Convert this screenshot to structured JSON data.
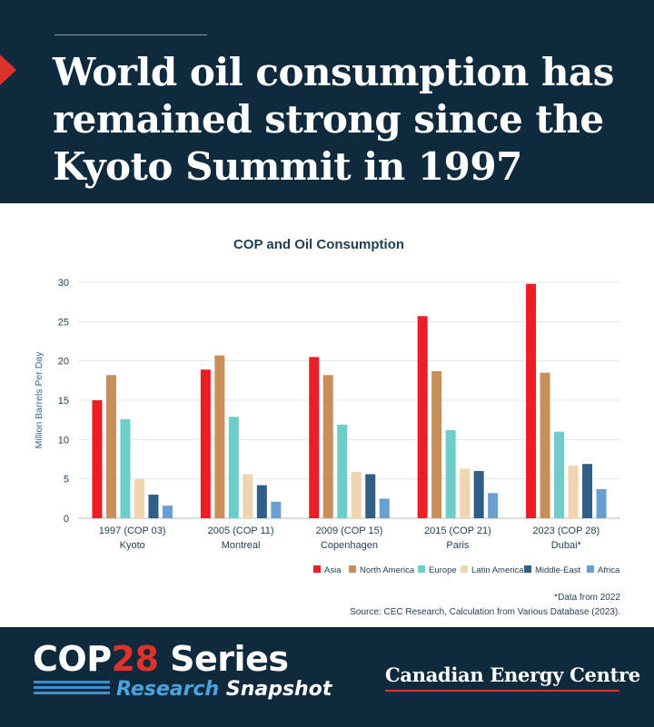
{
  "header": {
    "title": "World oil consumption has remained strong since the Kyoto Summit in 1997"
  },
  "colors": {
    "navy": "#0f2a3d",
    "accent_red": "#d9312b"
  },
  "chart_data": {
    "type": "bar",
    "title": "COP and Oil Consumption",
    "ylabel": "Million Barrels Per Day",
    "xlabel": "",
    "ylim": [
      0,
      30
    ],
    "yticks": [
      0,
      5,
      10,
      15,
      20,
      25,
      30
    ],
    "grid": true,
    "legend_position": "bottom-right",
    "categories": [
      {
        "line1": "1997 (COP 03)",
        "line2": "Kyoto"
      },
      {
        "line1": "2005 (COP 11)",
        "line2": "Montreal"
      },
      {
        "line1": "2009 (COP 15)",
        "line2": "Copenhagen"
      },
      {
        "line1": "2015 (COP 21)",
        "line2": "Paris"
      },
      {
        "line1": "2023 (COP 28)",
        "line2": "Dubai*"
      }
    ],
    "series": [
      {
        "name": "Asia",
        "color": "#ee1c25",
        "values": [
          15.0,
          18.9,
          20.5,
          25.7,
          29.8
        ]
      },
      {
        "name": "North America",
        "color": "#c98f5a",
        "values": [
          18.2,
          20.7,
          18.2,
          18.7,
          18.5
        ]
      },
      {
        "name": "Europe",
        "color": "#6dcdc8",
        "values": [
          12.6,
          12.9,
          11.9,
          11.2,
          11.0
        ]
      },
      {
        "name": "Latin America",
        "color": "#efd6b0",
        "values": [
          5.0,
          5.6,
          5.9,
          6.3,
          6.7
        ]
      },
      {
        "name": "Middle-East",
        "color": "#2f5f86",
        "values": [
          3.0,
          4.2,
          5.6,
          6.0,
          6.9
        ]
      },
      {
        "name": "Africa",
        "color": "#6a9fd2",
        "values": [
          1.6,
          2.1,
          2.5,
          3.2,
          3.7
        ]
      }
    ],
    "notes": {
      "footnote": "*Data from 2022",
      "source": "Source: CEC Research, Calculation from Various Database (2023)."
    }
  },
  "footer": {
    "series_cop": "COP",
    "series_num": "28",
    "series_word": " Series",
    "series_research": "Research",
    "series_snapshot": " Snapshot",
    "brand": "Canadian Energy Centre"
  }
}
